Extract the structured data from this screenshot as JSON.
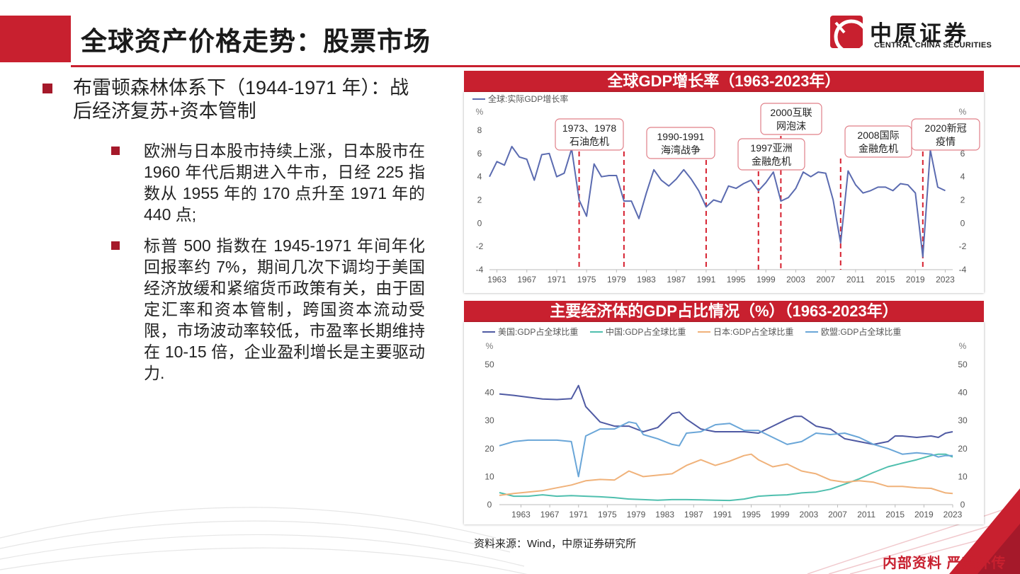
{
  "page": {
    "title": "全球资产价格走势：股票市场",
    "logo_cn": "中原证券",
    "logo_en": "CENTRAL CHINA SECURITIES",
    "source": "资料来源：Wind，中原证券研究所",
    "footer": "内部资料   严禁外传",
    "accent_color": "#c8202f"
  },
  "bullets": {
    "main": "布雷顿森林体系下（1944-1971 年）：战后经济复苏+资本管制",
    "sub": [
      "欧洲与日本股市持续上涨，日本股市在 1960 年代后期进入牛市，日经 225 指数从 1955 年的 170 点升至 1971 年的 440 点;",
      "标普 500 指数在 1945-1971 年间年化回报率约 7%，期间几次下调均于美国经济放缓和紧缩货币政策有关，由于固定汇率和资本管制，跨国资本流动受限，市场波动率较低，市盈率长期维持在 10-15 倍，企业盈利增长是主要驱动力."
    ]
  },
  "chart_data": [
    {
      "type": "line",
      "title": "全球GDP增长率（1963-2023年）",
      "unit_left": "%",
      "unit_right": "%",
      "ylim": [
        -4,
        8
      ],
      "yticks": [
        "8",
        "6",
        "4",
        "2",
        "0",
        "-2",
        "-4"
      ],
      "xtick_labels": [
        "1963",
        "1967",
        "1971",
        "1975",
        "1979",
        "1983",
        "1987",
        "1991",
        "1995",
        "1999",
        "2003",
        "2007",
        "2011",
        "2015",
        "2019",
        "2023"
      ],
      "x_start": 1962,
      "x_end": 2024,
      "series": [
        {
          "name": "全球:实际GDP增长率",
          "color": "#5b6bb0",
          "x": [
            1962,
            1963,
            1964,
            1965,
            1966,
            1967,
            1968,
            1969,
            1970,
            1971,
            1972,
            1973,
            1974,
            1975,
            1976,
            1977,
            1978,
            1979,
            1980,
            1981,
            1982,
            1983,
            1984,
            1985,
            1986,
            1987,
            1988,
            1989,
            1990,
            1991,
            1992,
            1993,
            1994,
            1995,
            1996,
            1997,
            1998,
            1999,
            2000,
            2001,
            2002,
            2003,
            2004,
            2005,
            2006,
            2007,
            2008,
            2009,
            2010,
            2011,
            2012,
            2013,
            2014,
            2015,
            2016,
            2017,
            2018,
            2019,
            2020,
            2021,
            2022,
            2023
          ],
          "values": [
            4.0,
            5.3,
            5.0,
            6.6,
            5.7,
            5.5,
            3.7,
            5.9,
            6.0,
            4.0,
            4.3,
            6.4,
            2.0,
            0.6,
            5.1,
            4.0,
            4.1,
            4.1,
            1.9,
            1.9,
            0.4,
            2.6,
            4.6,
            3.7,
            3.2,
            3.8,
            4.6,
            3.8,
            2.8,
            1.4,
            2.0,
            1.8,
            3.2,
            3.0,
            3.4,
            3.7,
            2.8,
            3.5,
            4.4,
            1.9,
            2.2,
            3.0,
            4.4,
            4.0,
            4.4,
            4.3,
            2.0,
            -1.7,
            4.5,
            3.3,
            2.6,
            2.8,
            3.1,
            3.1,
            2.8,
            3.4,
            3.3,
            2.6,
            -2.9,
            6.3,
            3.1,
            2.8
          ]
        }
      ],
      "annotations": [
        {
          "text": [
            "1973、1978",
            "石油危机"
          ],
          "years": [
            1974,
            1980
          ]
        },
        {
          "text": [
            "1990-1991",
            "海湾战争"
          ],
          "years": [
            1991
          ]
        },
        {
          "text": [
            "1997亚洲",
            "金融危机"
          ],
          "years": [
            1998
          ]
        },
        {
          "text": [
            "2000互联",
            "网泡沫"
          ],
          "years": [
            2001
          ]
        },
        {
          "text": [
            "2008国际",
            "金融危机"
          ],
          "years": [
            2009
          ]
        },
        {
          "text": [
            "2020新冠",
            "疫情"
          ],
          "years": [
            2020
          ]
        }
      ]
    },
    {
      "type": "line",
      "title": "主要经济体的GDP占比情况（%）（1963-2023年）",
      "unit_left": "%",
      "unit_right": "%",
      "ylim": [
        0,
        50
      ],
      "yticks": [
        "50",
        "40",
        "30",
        "20",
        "10",
        "0"
      ],
      "xtick_labels": [
        "1963",
        "1967",
        "1971",
        "1975",
        "1979",
        "1983",
        "1987",
        "1991",
        "1995",
        "1999",
        "2003",
        "2007",
        "2011",
        "2015",
        "2019",
        "2023"
      ],
      "x_start": 1960,
      "x_end": 2023,
      "series": [
        {
          "name": "美国:GDP占全球比重",
          "color": "#4f5aa3",
          "x": [
            1960,
            1962,
            1964,
            1966,
            1968,
            1970,
            1971,
            1972,
            1974,
            1976,
            1978,
            1980,
            1982,
            1984,
            1985,
            1986,
            1988,
            1990,
            1992,
            1994,
            1996,
            1998,
            2000,
            2001,
            2002,
            2004,
            2006,
            2008,
            2010,
            2012,
            2014,
            2015,
            2016,
            2018,
            2020,
            2021,
            2022,
            2023
          ],
          "values": [
            39.5,
            39.0,
            38.3,
            37.7,
            37.5,
            37.8,
            42.5,
            35.0,
            29.5,
            28.0,
            28.0,
            26.0,
            27.5,
            32.5,
            33.0,
            30.5,
            27.0,
            26.0,
            26.0,
            26.0,
            25.5,
            28.0,
            30.5,
            31.5,
            31.5,
            28.0,
            27.0,
            23.5,
            22.5,
            21.5,
            22.5,
            24.5,
            24.5,
            24.0,
            24.5,
            24.0,
            25.5,
            26.0
          ]
        },
        {
          "name": "中国:GDP占全球比重",
          "color": "#4fbfae",
          "x": [
            1960,
            1962,
            1964,
            1966,
            1968,
            1970,
            1972,
            1974,
            1976,
            1978,
            1980,
            1982,
            1984,
            1986,
            1988,
            1990,
            1992,
            1994,
            1996,
            1998,
            2000,
            2002,
            2004,
            2006,
            2008,
            2010,
            2012,
            2014,
            2016,
            2018,
            2020,
            2021,
            2022,
            2023
          ],
          "values": [
            4.3,
            3.0,
            3.0,
            3.5,
            3.0,
            3.2,
            3.0,
            2.8,
            2.5,
            2.0,
            1.8,
            1.6,
            1.8,
            1.8,
            1.7,
            1.6,
            1.5,
            2.0,
            3.0,
            3.3,
            3.5,
            4.2,
            4.5,
            5.5,
            7.3,
            9.2,
            11.5,
            13.5,
            14.8,
            16.0,
            17.5,
            18.0,
            18.0,
            17.0
          ]
        },
        {
          "name": "日本:GDP占全球比重",
          "color": "#f0b27a",
          "x": [
            1960,
            1962,
            1964,
            1966,
            1968,
            1970,
            1972,
            1974,
            1976,
            1978,
            1980,
            1982,
            1984,
            1986,
            1988,
            1990,
            1992,
            1994,
            1995,
            1996,
            1998,
            2000,
            2002,
            2004,
            2006,
            2008,
            2010,
            2012,
            2014,
            2016,
            2018,
            2020,
            2022,
            2023
          ],
          "values": [
            3.3,
            4.0,
            4.5,
            5.0,
            6.0,
            7.0,
            8.5,
            9.0,
            8.8,
            12.0,
            10.0,
            10.5,
            11.0,
            14.0,
            16.0,
            14.0,
            15.5,
            17.5,
            18.0,
            16.0,
            13.5,
            14.5,
            12.0,
            11.0,
            8.8,
            8.0,
            8.5,
            8.0,
            6.5,
            6.5,
            6.0,
            5.8,
            4.2,
            4.0
          ]
        },
        {
          "name": "欧盟:GDP占全球比重",
          "color": "#6aa6d8",
          "x": [
            1960,
            1962,
            1964,
            1966,
            1968,
            1970,
            1971,
            1972,
            1974,
            1976,
            1978,
            1979,
            1980,
            1982,
            1984,
            1985,
            1986,
            1988,
            1990,
            1992,
            1994,
            1996,
            1998,
            2000,
            2002,
            2004,
            2006,
            2008,
            2010,
            2012,
            2014,
            2016,
            2018,
            2020,
            2021,
            2022,
            2023
          ],
          "values": [
            21.0,
            22.5,
            23.0,
            23.0,
            23.0,
            22.5,
            10.0,
            24.5,
            27.0,
            27.0,
            29.5,
            29.0,
            25.0,
            23.5,
            21.5,
            21.0,
            25.5,
            26.0,
            28.5,
            29.0,
            26.5,
            26.5,
            24.0,
            21.5,
            22.5,
            25.5,
            25.0,
            25.5,
            24.0,
            21.5,
            20.0,
            18.0,
            18.5,
            18.0,
            17.0,
            17.5,
            17.5
          ]
        }
      ]
    }
  ]
}
